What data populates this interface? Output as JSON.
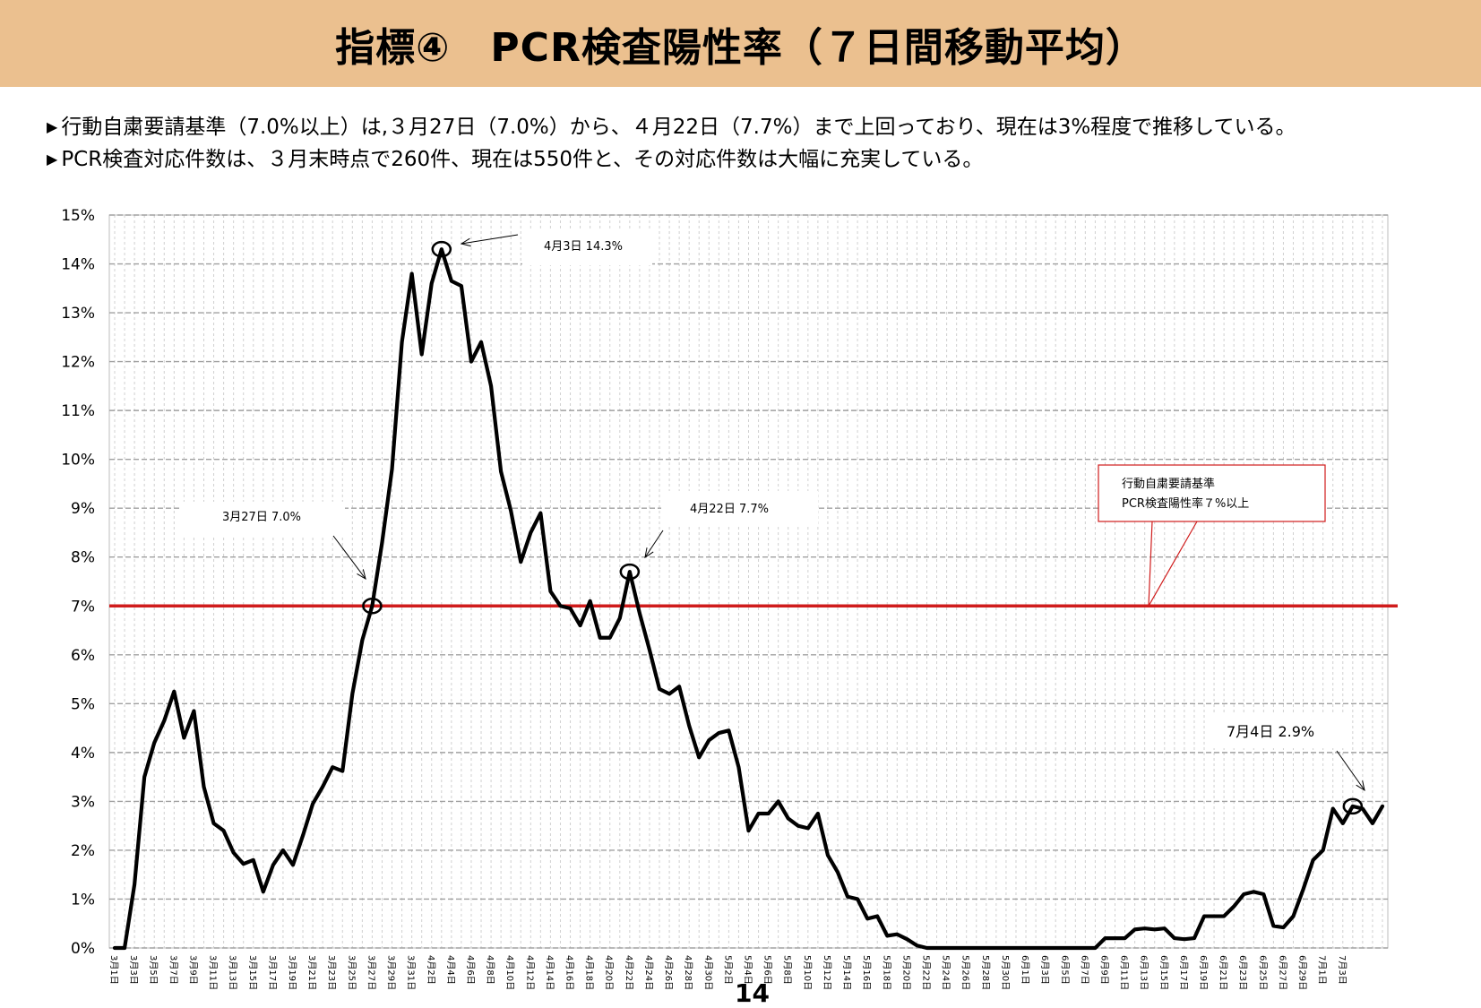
{
  "title": "指標④　PCR検査陽性率（７日間移動平均）",
  "bullets": [
    {
      "mark": "▶",
      "text": "行動自粛要請基準（7.0%以上）は,３月27日（7.0%）から、４月22日（7.7%）まで上回っており、現在は3%程度で推移している。"
    },
    {
      "mark": "▶",
      "text": "PCR検査対応件数は、３月末時点で260件、現在は550件と、その対応件数は大幅に充実している。"
    }
  ],
  "page_number": "14",
  "colors": {
    "title_bg": "#EBC08F",
    "line": "#000000",
    "threshold": "#D01C1C",
    "grid": "#A0A0A0"
  },
  "chart_data": {
    "type": "line",
    "ylim": [
      0,
      15
    ],
    "y_ticks": [
      "0%",
      "1%",
      "2%",
      "3%",
      "4%",
      "5%",
      "6%",
      "7%",
      "8%",
      "9%",
      "10%",
      "11%",
      "12%",
      "13%",
      "14%",
      "15%"
    ],
    "grid": true,
    "x_tick_labels": [
      "3月1日",
      "3月3日",
      "3月5日",
      "3月7日",
      "3月9日",
      "3月11日",
      "3月13日",
      "3月15日",
      "3月17日",
      "3月19日",
      "3月21日",
      "3月23日",
      "3月25日",
      "3月27日",
      "3月29日",
      "3月31日",
      "4月2日",
      "4月4日",
      "4月6日",
      "4月8日",
      "4月10日",
      "4月12日",
      "4月14日",
      "4月16日",
      "4月18日",
      "4月20日",
      "4月22日",
      "4月24日",
      "4月26日",
      "4月28日",
      "4月30日",
      "5月2日",
      "5月4日",
      "5月6日",
      "5月8日",
      "5月10日",
      "5月12日",
      "5月14日",
      "5月16日",
      "5月18日",
      "5月20日",
      "5月22日",
      "5月24日",
      "5月26日",
      "5月28日",
      "5月30日",
      "6月1日",
      "6月3日",
      "6月5日",
      "6月7日",
      "6月9日",
      "6月11日",
      "6月13日",
      "6月15日",
      "6月17日",
      "6月19日",
      "6月21日",
      "6月23日",
      "6月25日",
      "6月27日",
      "6月29日",
      "7月1日",
      "7月3日"
    ],
    "x_start": "3月1日",
    "x_end": "7月4日",
    "values": [
      0.0,
      0.0,
      1.3,
      3.5,
      4.2,
      4.65,
      5.25,
      4.3,
      4.85,
      3.3,
      2.55,
      2.4,
      1.95,
      1.72,
      1.8,
      1.15,
      1.7,
      2.0,
      1.7,
      2.3,
      2.95,
      3.3,
      3.7,
      3.62,
      5.2,
      6.3,
      7.0,
      8.3,
      9.8,
      12.4,
      13.8,
      12.15,
      13.6,
      14.3,
      13.65,
      13.55,
      12.0,
      12.4,
      11.5,
      9.75,
      8.95,
      7.9,
      8.5,
      8.9,
      7.3,
      7.0,
      6.95,
      6.6,
      7.1,
      6.35,
      6.35,
      6.75,
      7.7,
      6.85,
      6.1,
      5.3,
      5.2,
      5.35,
      4.55,
      3.9,
      4.25,
      4.4,
      4.45,
      3.7,
      2.4,
      2.75,
      2.75,
      3.0,
      2.65,
      2.5,
      2.45,
      2.75,
      1.9,
      1.55,
      1.05,
      1.0,
      0.6,
      0.65,
      0.25,
      0.28,
      0.18,
      0.05,
      0.0,
      0.0,
      0.0,
      0.0,
      0.0,
      0.0,
      0.0,
      0.0,
      0.0,
      0.0,
      0.0,
      0.0,
      0.0,
      0.0,
      0.0,
      0.0,
      0.0,
      0.0,
      0.2,
      0.2,
      0.2,
      0.38,
      0.4,
      0.38,
      0.4,
      0.2,
      0.18,
      0.2,
      0.65,
      0.65,
      0.65,
      0.85,
      1.1,
      1.15,
      1.1,
      0.45,
      0.42,
      0.65,
      1.2,
      1.8,
      2.0,
      2.85,
      2.55,
      2.9,
      2.85,
      2.55,
      2.9
    ],
    "threshold": {
      "value": 7.0,
      "label_lines": [
        "行動自粛要請基準",
        "PCR検査陽性率７%以上"
      ]
    },
    "annotations": [
      {
        "label": "3月27日 7.0%",
        "date": "3月27日",
        "value": 7.0
      },
      {
        "label": "4月3日 14.3%",
        "date": "4月3日",
        "value": 14.3
      },
      {
        "label": "4月22日 7.7%",
        "date": "4月22日",
        "value": 7.7
      },
      {
        "label": "7月4日 2.9%",
        "date": "7月4日",
        "value": 2.9
      }
    ]
  }
}
